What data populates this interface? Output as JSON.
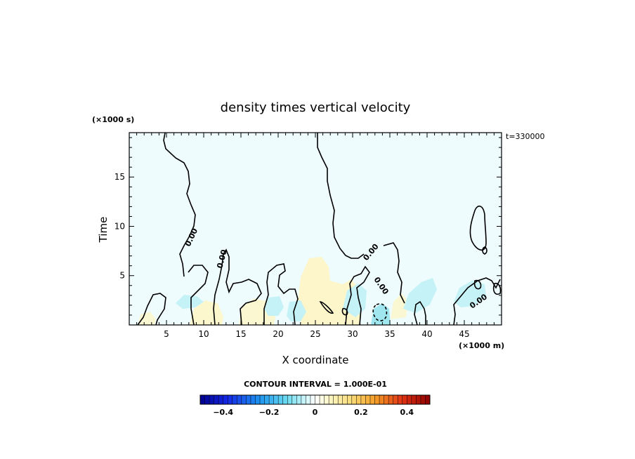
{
  "chart_data": {
    "type": "heatmap",
    "title": "density times vertical velocity",
    "xlabel": "X coordinate",
    "ylabel": "Time",
    "x_unit": "(×1000 m)",
    "y_unit": "(×1000 s)",
    "time_stamp": "t=330000",
    "xlim": [
      0,
      50
    ],
    "ylim": [
      0,
      19.5
    ],
    "xticks": [
      "5",
      "10",
      "15",
      "20",
      "25",
      "30",
      "35",
      "40",
      "45"
    ],
    "yticks": [
      "5",
      "10",
      "15"
    ],
    "contour_label": "0.00",
    "contour_interval_label": "CONTOUR INTERVAL = 1.000E-01",
    "colorbar": {
      "range": [
        -0.5,
        0.5
      ],
      "tick_labels": [
        "−0.4",
        "−0.2",
        "0",
        "0.2",
        "0.4"
      ],
      "tick_values": [
        -0.4,
        -0.2,
        0,
        0.2,
        0.4
      ]
    },
    "colors": {
      "background_field": "#eefcfe",
      "positive_field": "#fdf6c8",
      "negative_field": "#c5f2f6",
      "negative_strong": "#9fe6ee",
      "contour": "#000000"
    }
  }
}
